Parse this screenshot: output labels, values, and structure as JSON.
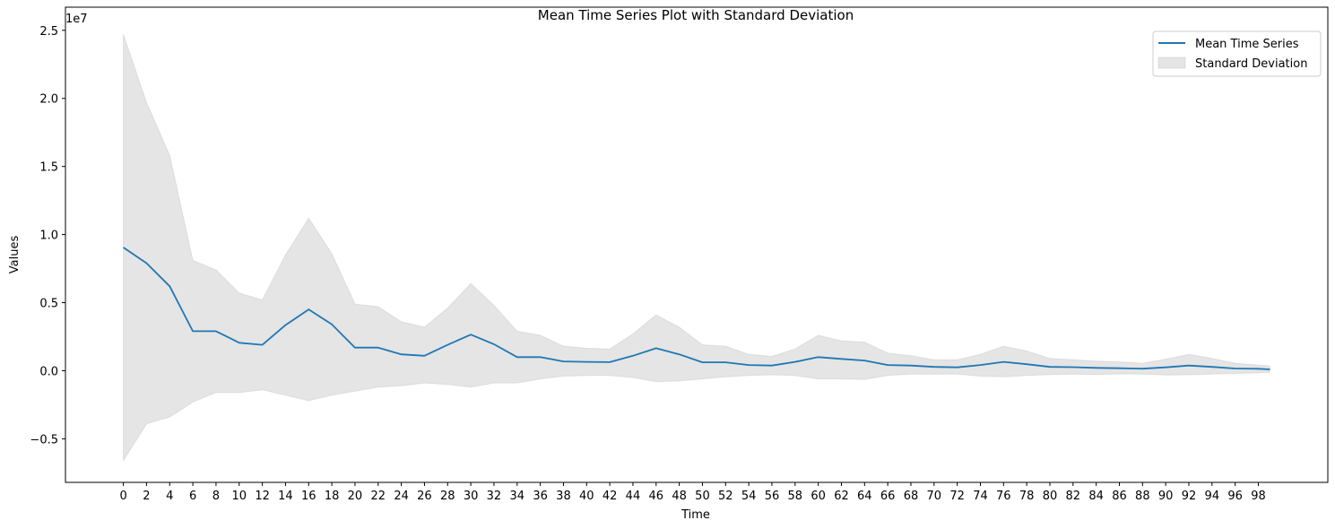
{
  "chart_data": {
    "type": "line",
    "title": "Mean Time Series Plot with Standard Deviation",
    "xlabel": "Time",
    "ylabel": "Values",
    "y_offset_label": "1e7",
    "xlim": [
      -5,
      104
    ],
    "ylim": [
      -8200000,
      26700000
    ],
    "x_ticks": [
      0,
      2,
      4,
      6,
      8,
      10,
      12,
      14,
      16,
      18,
      20,
      22,
      24,
      26,
      28,
      30,
      32,
      34,
      36,
      38,
      40,
      42,
      44,
      46,
      48,
      50,
      52,
      54,
      56,
      58,
      60,
      62,
      64,
      66,
      68,
      70,
      72,
      74,
      76,
      78,
      80,
      82,
      84,
      86,
      88,
      90,
      92,
      94,
      96,
      98
    ],
    "y_ticks": [
      -5000000,
      0,
      5000000,
      10000000,
      15000000,
      20000000,
      25000000
    ],
    "y_tick_labels": [
      "−0.5",
      "0.0",
      "0.5",
      "1.0",
      "1.5",
      "2.0",
      "2.5"
    ],
    "grid": false,
    "legend_position": "top-right",
    "series": [
      {
        "name": "Mean Time Series",
        "kind": "line",
        "color": "#1f77b4",
        "x": [
          0,
          2,
          4,
          6,
          8,
          10,
          12,
          14,
          16,
          18,
          20,
          22,
          24,
          26,
          28,
          30,
          32,
          34,
          36,
          38,
          40,
          42,
          44,
          46,
          48,
          50,
          52,
          54,
          56,
          58,
          60,
          62,
          64,
          66,
          68,
          70,
          72,
          74,
          76,
          78,
          80,
          82,
          84,
          86,
          88,
          90,
          92,
          94,
          96,
          98,
          99
        ],
        "values": [
          9050000,
          7900000,
          6200000,
          2900000,
          2900000,
          2050000,
          1900000,
          3350000,
          4500000,
          3400000,
          1700000,
          1700000,
          1200000,
          1100000,
          1900000,
          2650000,
          1950000,
          1000000,
          1000000,
          680000,
          650000,
          630000,
          1100000,
          1650000,
          1200000,
          620000,
          620000,
          420000,
          380000,
          650000,
          1000000,
          870000,
          750000,
          420000,
          380000,
          280000,
          250000,
          420000,
          650000,
          480000,
          280000,
          260000,
          210000,
          180000,
          150000,
          250000,
          380000,
          280000,
          160000,
          140000,
          100000
        ]
      },
      {
        "name": "Standard Deviation",
        "kind": "band",
        "color": "#cccccc",
        "x": [
          0,
          2,
          4,
          6,
          8,
          10,
          12,
          14,
          16,
          18,
          20,
          22,
          24,
          26,
          28,
          30,
          32,
          34,
          36,
          38,
          40,
          42,
          44,
          46,
          48,
          50,
          52,
          54,
          56,
          58,
          60,
          62,
          64,
          66,
          68,
          70,
          72,
          74,
          76,
          78,
          80,
          82,
          84,
          86,
          88,
          90,
          92,
          94,
          96,
          98,
          99
        ],
        "upper": [
          24700000,
          19700000,
          15800000,
          8100000,
          7400000,
          5700000,
          5200000,
          8500000,
          11200000,
          8600000,
          4900000,
          4700000,
          3600000,
          3200000,
          4600000,
          6400000,
          4800000,
          2900000,
          2600000,
          1800000,
          1650000,
          1600000,
          2700000,
          4100000,
          3200000,
          1900000,
          1800000,
          1200000,
          1050000,
          1600000,
          2600000,
          2200000,
          2100000,
          1300000,
          1100000,
          800000,
          800000,
          1200000,
          1800000,
          1450000,
          900000,
          800000,
          700000,
          650000,
          550000,
          850000,
          1200000,
          900000,
          550000,
          420000,
          350000
        ],
        "lower": [
          -6600000,
          -3900000,
          -3400000,
          -2300000,
          -1600000,
          -1600000,
          -1400000,
          -1800000,
          -2200000,
          -1800000,
          -1500000,
          -1200000,
          -1100000,
          -900000,
          -1000000,
          -1200000,
          -900000,
          -900000,
          -600000,
          -400000,
          -350000,
          -350000,
          -500000,
          -800000,
          -750000,
          -600000,
          -450000,
          -350000,
          -300000,
          -350000,
          -600000,
          -600000,
          -650000,
          -350000,
          -250000,
          -250000,
          -250000,
          -400000,
          -450000,
          -350000,
          -280000,
          -250000,
          -280000,
          -230000,
          -250000,
          -320000,
          -300000,
          -250000,
          -200000,
          -150000,
          -120000
        ]
      }
    ]
  }
}
